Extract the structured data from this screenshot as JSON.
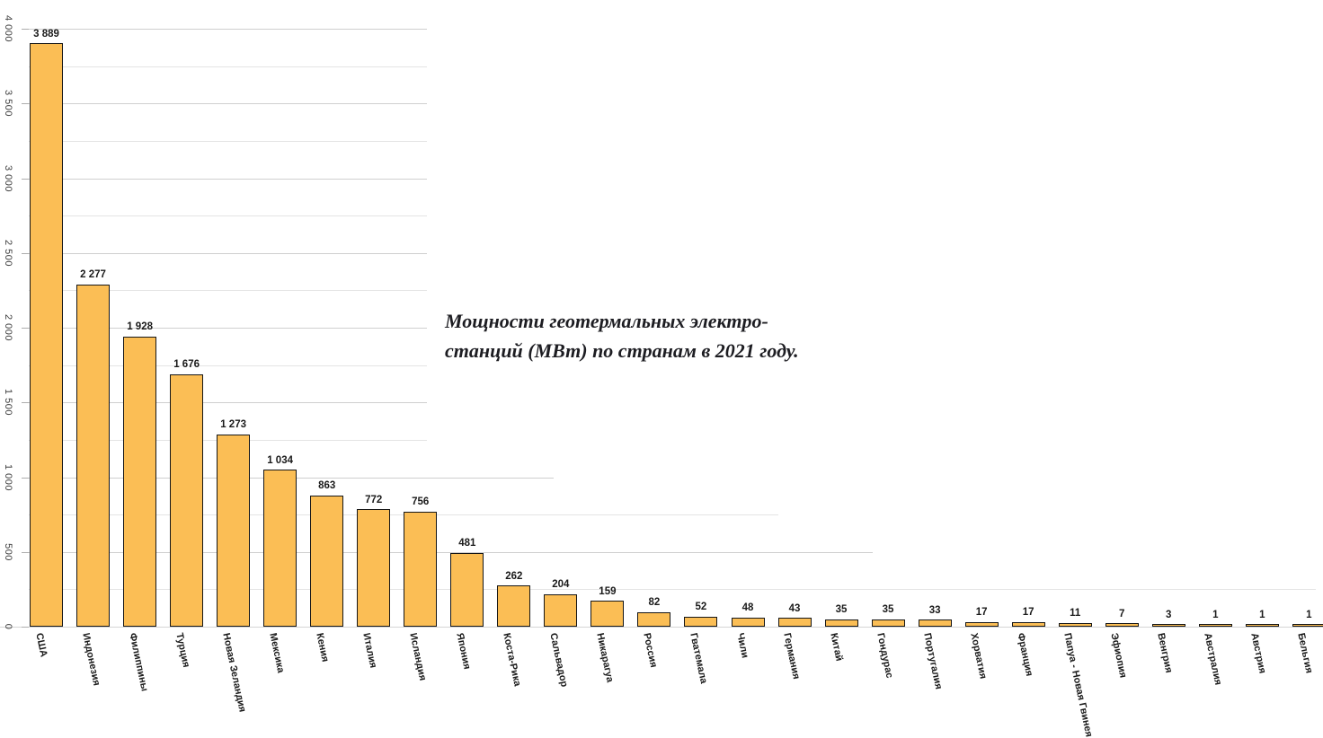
{
  "chart_data": {
    "type": "bar",
    "title": "Мощности геотермальных электро-станций (МВт) по странам в 2021 году.",
    "title_lines": [
      "Мощности геотермальных электро-",
      "станций (МВт) по странам в 2021 году."
    ],
    "unit": "МВт",
    "year": "2021",
    "categories": [
      "США",
      "Индонезия",
      "Филиппины",
      "Турция",
      "Новая Зеландия",
      "Мексика",
      "Кения",
      "Италия",
      "Исландия",
      "Япония",
      "Коста-Рика",
      "Сальвадор",
      "Никарагуа",
      "Россия",
      "Гватемала",
      "Чили",
      "Германия",
      "Китай",
      "Гондурас",
      "Португалия",
      "Хорватия",
      "Франция",
      "Папуа - Новая Гвинея",
      "Эфиопия",
      "Венгрия",
      "Австралия",
      "Австрия",
      "Бельгия"
    ],
    "values": [
      3889,
      2277,
      1928,
      1676,
      1273,
      1034,
      863,
      772,
      756,
      481,
      262,
      204,
      159,
      82,
      52,
      48,
      43,
      35,
      35,
      33,
      17,
      17,
      11,
      7,
      3,
      1,
      1,
      1
    ],
    "value_labels": [
      "3 889",
      "2 277",
      "1 928",
      "1 676",
      "1 273",
      "1 034",
      "863",
      "772",
      "756",
      "481",
      "262",
      "204",
      "159",
      "82",
      "52",
      "48",
      "43",
      "35",
      "35",
      "33",
      "17",
      "17",
      "11",
      "7",
      "3",
      "1",
      "1",
      "1"
    ],
    "xlabel": "",
    "ylabel": "",
    "ylim": [
      0,
      4000
    ],
    "ytick_values": [
      4000,
      3500,
      3000,
      2500,
      2000,
      1500,
      1000,
      500,
      0
    ],
    "ytick_labels": [
      "4 000",
      "3 500",
      "3 000",
      "2 500",
      "2 000",
      "1 500",
      "1 000",
      "500",
      "0"
    ],
    "grid": "on",
    "grid_minor_step": 250,
    "legend_position": "none",
    "colors": {
      "background": "#ffffff",
      "bar_fill": "#FBBE55",
      "bar_border": "#161616",
      "grid_major": "#cfcfcf",
      "grid_minor": "#e4e4e4",
      "axis_line": "#d6d6d6",
      "value_label_text": "#1a1a1a",
      "category_label_text": "#1a1a1a",
      "ytick_text": "#3d3d3d",
      "title_text": "#1d1d22"
    }
  }
}
